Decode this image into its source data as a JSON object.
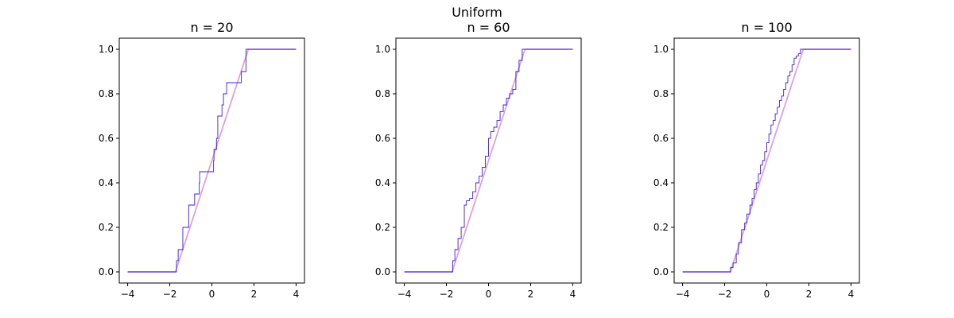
{
  "figure": {
    "suptitle": "Uniform"
  },
  "chart_data": [
    {
      "type": "line",
      "title": "n = 20",
      "xlabel": "",
      "ylabel": "",
      "xlim": [
        -4.4,
        4.4
      ],
      "ylim": [
        -0.05,
        1.05
      ],
      "xticks": [
        -4,
        -2,
        0,
        2,
        4
      ],
      "xtick_labels": [
        "−4",
        "−2",
        "0",
        "2",
        "4"
      ],
      "yticks": [
        0.0,
        0.2,
        0.4,
        0.6,
        0.8,
        1.0
      ],
      "ytick_labels": [
        "0.0",
        "0.2",
        "0.4",
        "0.6",
        "0.8",
        "1.0"
      ],
      "grid": false,
      "series": [
        {
          "kind": "theoretical_cdf",
          "color": "#dda0dd",
          "x": [
            -4,
            -1.732,
            1.732,
            4
          ],
          "y": [
            0,
            0,
            1,
            1
          ]
        },
        {
          "kind": "empirical_cdf_step",
          "color": "#3b1ee0",
          "x": [
            -1.68,
            -1.6,
            -1.38,
            -1.1,
            -0.82,
            -0.6,
            -0.58,
            0.08,
            0.1,
            0.22,
            0.28,
            0.48,
            0.55,
            0.7,
            0.9,
            1.4,
            1.62,
            1.72
          ],
          "y": [
            0.05,
            0.1,
            0.2,
            0.3,
            0.35,
            0.4,
            0.45,
            0.5,
            0.55,
            0.6,
            0.7,
            0.75,
            0.8,
            0.85,
            0.85,
            0.9,
            1.0,
            1.0
          ],
          "x_start": -4,
          "x_end": 4
        }
      ]
    },
    {
      "type": "line",
      "title": "n = 60",
      "xlabel": "",
      "ylabel": "",
      "xlim": [
        -4.4,
        4.4
      ],
      "ylim": [
        -0.05,
        1.05
      ],
      "xticks": [
        -4,
        -2,
        0,
        2,
        4
      ],
      "xtick_labels": [
        "−4",
        "−2",
        "0",
        "2",
        "4"
      ],
      "yticks": [
        0.0,
        0.2,
        0.4,
        0.6,
        0.8,
        1.0
      ],
      "ytick_labels": [
        "0.0",
        "0.2",
        "0.4",
        "0.6",
        "0.8",
        "1.0"
      ],
      "grid": false,
      "series": [
        {
          "kind": "theoretical_cdf",
          "color": "#dda0dd",
          "x": [
            -4,
            -1.732,
            1.732,
            4
          ],
          "y": [
            0,
            0,
            1,
            1
          ]
        },
        {
          "kind": "empirical_cdf_step",
          "color": "#3b1ee0",
          "x": [
            -1.7,
            -1.6,
            -1.45,
            -1.3,
            -1.15,
            -1.05,
            -0.9,
            -0.75,
            -0.6,
            -0.45,
            -0.3,
            -0.15,
            0.0,
            0.1,
            0.25,
            0.4,
            0.55,
            0.7,
            0.85,
            1.0,
            1.15,
            1.3,
            1.45,
            1.6,
            1.7
          ],
          "y": [
            0.05,
            0.1,
            0.15,
            0.2,
            0.3,
            0.32,
            0.33,
            0.36,
            0.4,
            0.43,
            0.47,
            0.52,
            0.6,
            0.63,
            0.65,
            0.68,
            0.72,
            0.75,
            0.78,
            0.8,
            0.82,
            0.9,
            0.95,
            1.0,
            1.0
          ],
          "x_start": -4,
          "x_end": 4
        }
      ]
    },
    {
      "type": "line",
      "title": "n = 100",
      "xlabel": "",
      "ylabel": "",
      "xlim": [
        -4.4,
        4.4
      ],
      "ylim": [
        -0.05,
        1.05
      ],
      "xticks": [
        -4,
        -2,
        0,
        2,
        4
      ],
      "xtick_labels": [
        "−4",
        "−2",
        "0",
        "2",
        "4"
      ],
      "yticks": [
        0.0,
        0.2,
        0.4,
        0.6,
        0.8,
        1.0
      ],
      "ytick_labels": [
        "0.0",
        "0.2",
        "0.4",
        "0.6",
        "0.8",
        "1.0"
      ],
      "grid": false,
      "series": [
        {
          "kind": "theoretical_cdf",
          "color": "#dda0dd",
          "x": [
            -4,
            -1.732,
            1.732,
            4
          ],
          "y": [
            0,
            0,
            1,
            1
          ]
        },
        {
          "kind": "empirical_cdf_step",
          "color": "#3b1ee0",
          "x": [
            -1.72,
            -1.6,
            -1.45,
            -1.35,
            -1.2,
            -1.05,
            -0.95,
            -0.8,
            -0.7,
            -0.6,
            -0.5,
            -0.4,
            -0.3,
            -0.2,
            -0.1,
            0.0,
            0.1,
            0.2,
            0.3,
            0.4,
            0.5,
            0.6,
            0.7,
            0.8,
            0.9,
            1.0,
            1.1,
            1.2,
            1.3,
            1.4,
            1.5,
            1.6,
            1.7
          ],
          "y": [
            0.02,
            0.04,
            0.08,
            0.13,
            0.19,
            0.22,
            0.26,
            0.3,
            0.33,
            0.37,
            0.4,
            0.44,
            0.48,
            0.5,
            0.54,
            0.58,
            0.62,
            0.66,
            0.68,
            0.71,
            0.74,
            0.77,
            0.79,
            0.82,
            0.85,
            0.88,
            0.9,
            0.93,
            0.96,
            0.97,
            0.98,
            1.0,
            1.0
          ],
          "x_start": -4,
          "x_end": 4
        }
      ]
    }
  ]
}
